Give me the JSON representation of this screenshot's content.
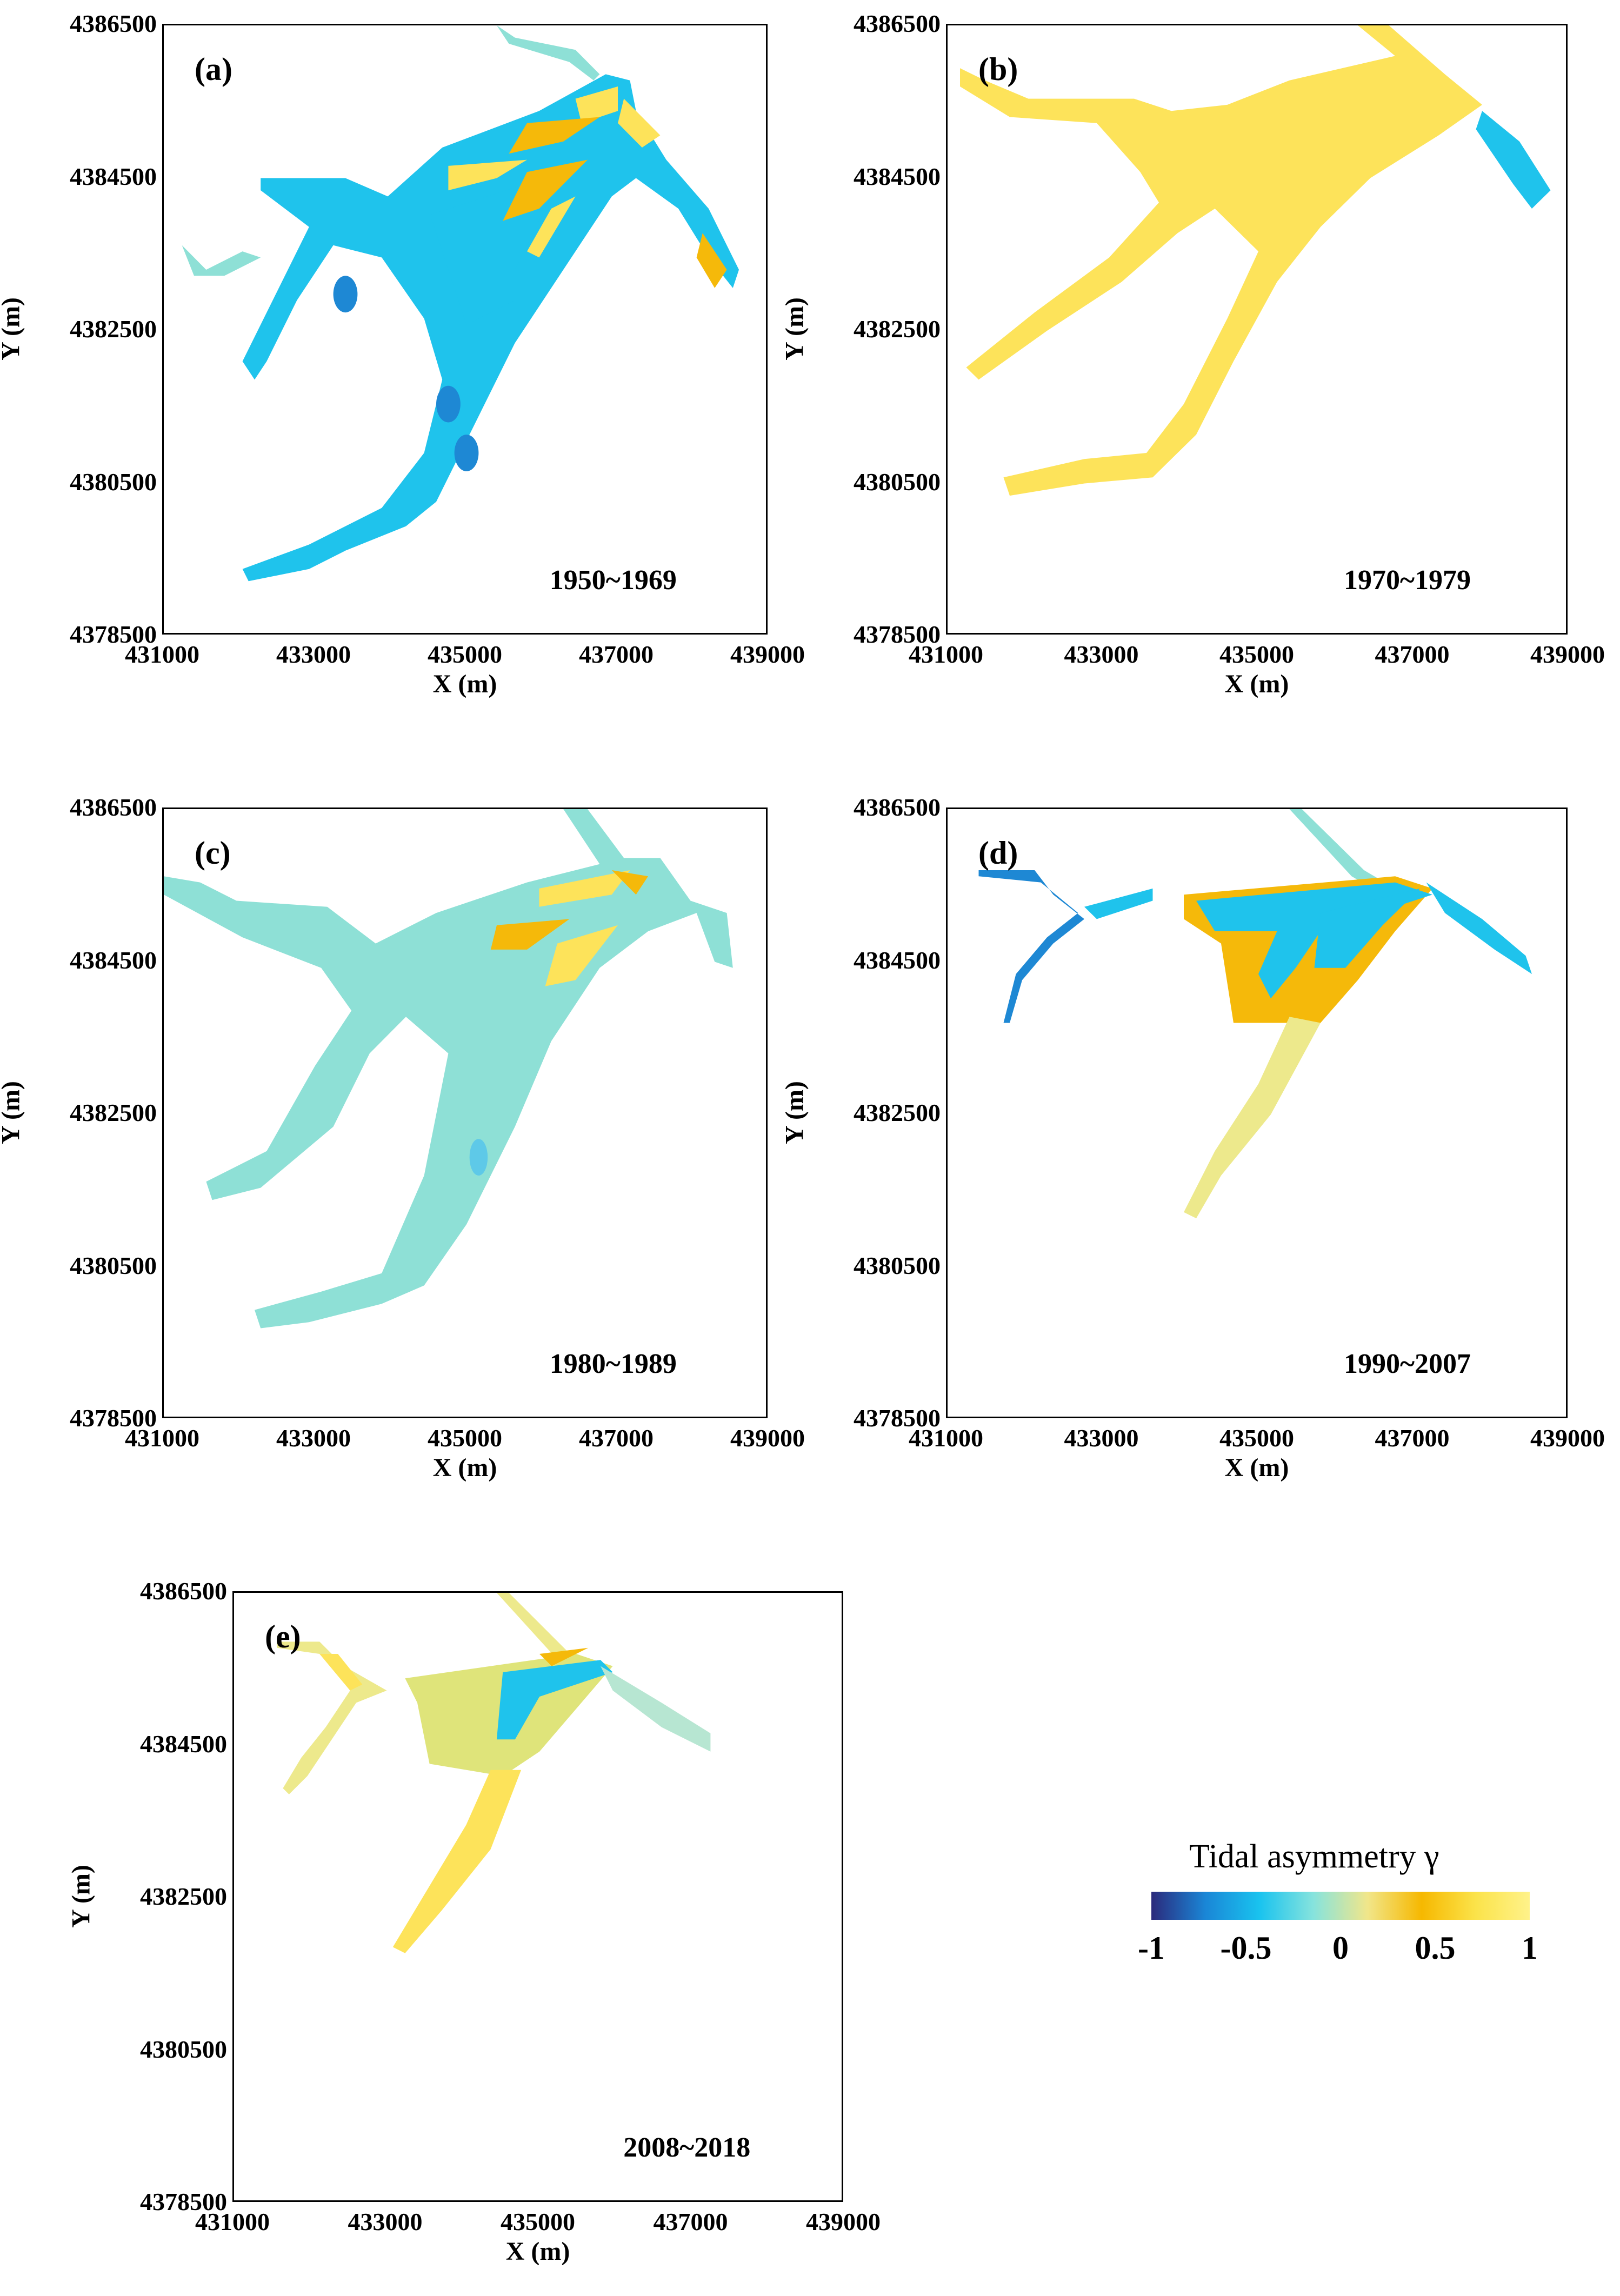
{
  "chart_data": [
    {
      "type": "heatmap",
      "panel": "(a)",
      "period": "1950~1969",
      "xlabel": "X (m)",
      "ylabel": "Y (m)",
      "xlim": [
        431000,
        439000
      ],
      "ylim": [
        4378500,
        4386500
      ],
      "xticks": [
        "431000",
        "433000",
        "435000",
        "437000",
        "439000"
      ],
      "yticks": [
        "4378500",
        "4380500",
        "4382500",
        "4384500",
        "4386500"
      ],
      "dominant_gamma": -0.5
    },
    {
      "type": "heatmap",
      "panel": "(b)",
      "period": "1970~1979",
      "xlabel": "X (m)",
      "ylabel": "Y (m)",
      "xlim": [
        431000,
        439000
      ],
      "ylim": [
        4378500,
        4386500
      ],
      "xticks": [
        "431000",
        "433000",
        "435000",
        "437000",
        "439000"
      ],
      "yticks": [
        "4378500",
        "4380500",
        "4382500",
        "4384500",
        "4386500"
      ],
      "dominant_gamma": 0.8
    },
    {
      "type": "heatmap",
      "panel": "(c)",
      "period": "1980~1989",
      "xlabel": "X (m)",
      "ylabel": "Y (m)",
      "xlim": [
        431000,
        439000
      ],
      "ylim": [
        4378500,
        4386500
      ],
      "xticks": [
        "431000",
        "433000",
        "435000",
        "437000",
        "439000"
      ],
      "yticks": [
        "4378500",
        "4380500",
        "4382500",
        "4384500",
        "4386500"
      ],
      "dominant_gamma": -0.15
    },
    {
      "type": "heatmap",
      "panel": "(d)",
      "period": "1990~2007",
      "xlabel": "X (m)",
      "ylabel": "Y (m)",
      "xlim": [
        431000,
        439000
      ],
      "ylim": [
        4378500,
        4386500
      ],
      "xticks": [
        "431000",
        "433000",
        "435000",
        "437000",
        "439000"
      ],
      "yticks": [
        "4378500",
        "4380500",
        "4382500",
        "4384500",
        "4386500"
      ],
      "dominant_gamma": 0.3
    },
    {
      "type": "heatmap",
      "panel": "(e)",
      "period": "2008~2018",
      "xlabel": "X (m)",
      "ylabel": "Y (m)",
      "xlim": [
        431000,
        439000
      ],
      "ylim": [
        4378500,
        4386500
      ],
      "xticks": [
        "431000",
        "433000",
        "435000",
        "437000",
        "439000"
      ],
      "yticks": [
        "4378500",
        "4380500",
        "4382500",
        "4384500",
        "4386500"
      ],
      "dominant_gamma": 0.6
    }
  ],
  "colorbar": {
    "title": "Tidal asymmetry γ",
    "range": [
      -1,
      1
    ],
    "ticks": [
      "-1",
      "-0.5",
      "0",
      "0.5",
      "1"
    ],
    "colors": [
      "#2b2a7c",
      "#1a86d6",
      "#19c3ef",
      "#86e3dd",
      "#f1e68a",
      "#f6b800",
      "#fbe34a",
      "#fff28a"
    ]
  },
  "colors": {
    "blue": "#1fc3ec",
    "deep_blue": "#1e88d4",
    "cyan_green": "#8ee0d6",
    "yellow": "#fde35a",
    "orange": "#f5b90a",
    "pale_yellow": "#ede98c"
  }
}
